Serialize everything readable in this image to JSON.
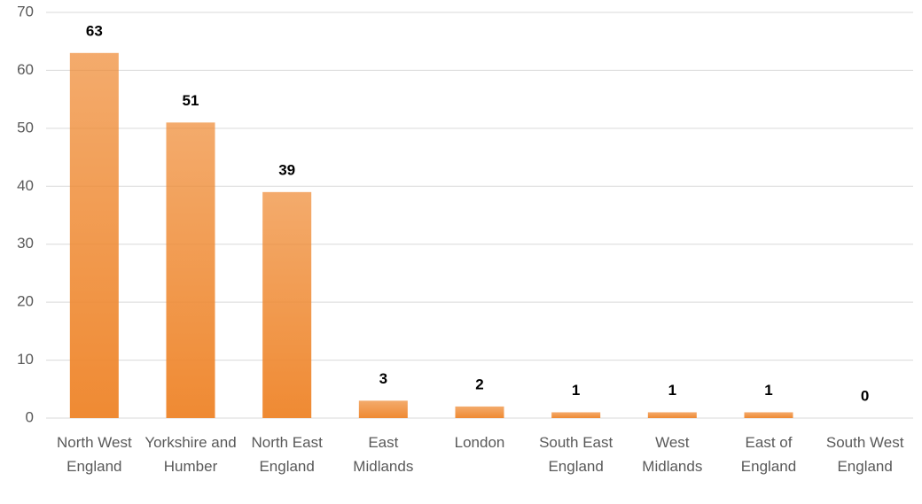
{
  "chart_data": {
    "type": "bar",
    "categories": [
      "North West England",
      "Yorkshire and Humber",
      "North East England",
      "East Midlands",
      "London",
      "South East England",
      "West Midlands",
      "East of England",
      "South West England"
    ],
    "values": [
      63,
      51,
      39,
      3,
      2,
      1,
      1,
      1,
      0
    ],
    "color": "#ef8a33",
    "ylim": [
      0,
      70
    ],
    "yticks": [
      0,
      10,
      20,
      30,
      40,
      50,
      60,
      70
    ],
    "grid": true
  }
}
